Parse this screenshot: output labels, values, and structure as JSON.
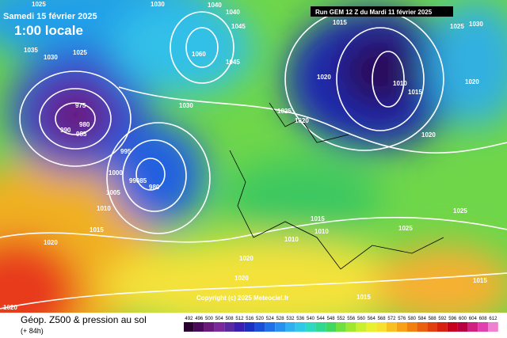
{
  "header": {
    "date": "Samedi 15 février 2025",
    "time": "1:00 locale",
    "run": "Run GEM 12 Z du Mardi 11 février 2025"
  },
  "isobar_labels": [
    "1025",
    "1030",
    "1040",
    "1040",
    "1045",
    "1035",
    "1030",
    "1025",
    "1060",
    "1045",
    "1030",
    "975",
    "980",
    "990",
    "985",
    "995",
    "1000",
    "99085",
    "980",
    "1005",
    "1010",
    "1015",
    "1020",
    "1020",
    "1015",
    "1020",
    "1010",
    "1015",
    "1025",
    "1020",
    "1020",
    "1025",
    "1030",
    "1020",
    "1015",
    "1010",
    "1010",
    "1025",
    "1025",
    "1020",
    "1020",
    "1015",
    "1015"
  ],
  "copyright": "Copyright (c) 2025 Meteociel.fr",
  "footer": {
    "title": "Géop. Z500 & pression au sol",
    "lead": "(+ 84h)"
  },
  "colorbar": {
    "ticks": [
      492,
      496,
      500,
      504,
      508,
      512,
      516,
      520,
      524,
      528,
      532,
      536,
      540,
      544,
      548,
      552,
      556,
      560,
      564,
      568,
      572,
      576,
      580,
      584,
      588,
      592,
      596,
      600,
      604,
      608,
      612
    ]
  }
}
